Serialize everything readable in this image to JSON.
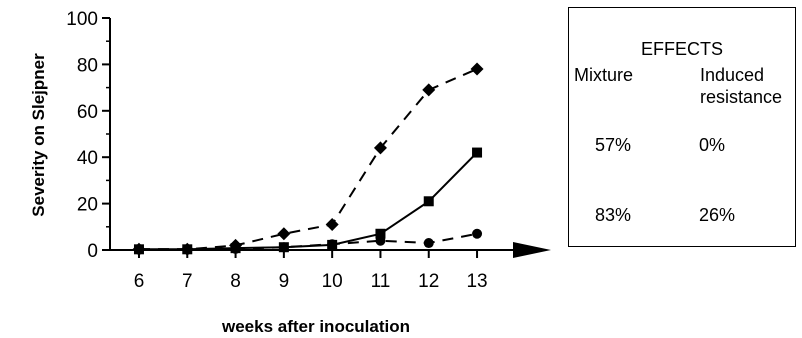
{
  "chart_data": {
    "type": "line",
    "title": "",
    "xlabel": "weeks after inoculation",
    "ylabel": "Severity on Slejpner",
    "x": [
      6,
      7,
      8,
      9,
      10,
      11,
      12,
      13
    ],
    "x_ticks": [
      "6",
      "7",
      "8",
      "9",
      "10",
      "11",
      "12",
      "13"
    ],
    "y_ticks": [
      "0",
      "20",
      "40",
      "60",
      "80",
      "100"
    ],
    "ylim": [
      0,
      100
    ],
    "xlim": [
      5.4,
      14.2
    ],
    "grid": false,
    "series": [
      {
        "marker": "diamond",
        "line": "dashed",
        "values": [
          0.3,
          0.3,
          2,
          7,
          11,
          44,
          69,
          78
        ]
      },
      {
        "marker": "square",
        "line": "solid",
        "values": [
          0.3,
          0.3,
          0.8,
          1.2,
          2.2,
          7,
          21,
          42
        ]
      },
      {
        "marker": "circle",
        "line": "dashed",
        "values": [
          0.3,
          0.3,
          0.5,
          1.2,
          2.5,
          4,
          3,
          7
        ]
      }
    ]
  },
  "effects_box": {
    "title": "EFFECTS",
    "col1_header": "Mixture",
    "col2_header_line1": "Induced",
    "col2_header_line2": "resistance",
    "rows": [
      {
        "mixture": "57%",
        "induced": "0%"
      },
      {
        "mixture": "83%",
        "induced": "26%"
      }
    ]
  }
}
